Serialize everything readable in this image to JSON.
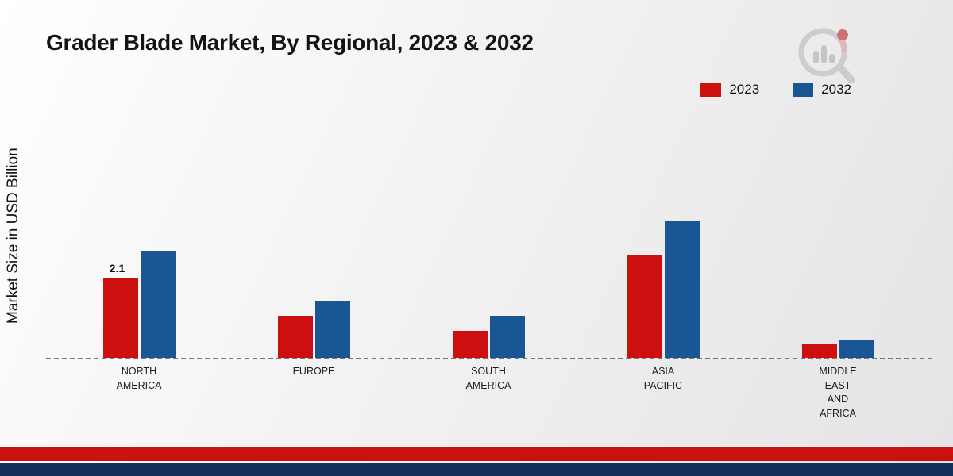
{
  "title": "Grader Blade Market, By Regional, 2023 & 2032",
  "y_axis_label": "Market Size in USD Billion",
  "legend": {
    "items": [
      {
        "label": "2023",
        "color": "#cc0f0f"
      },
      {
        "label": "2032",
        "color": "#1a5693"
      }
    ]
  },
  "annotation": {
    "text": "2.1",
    "category_index": 0,
    "series_index": 0
  },
  "branding": {
    "logo": "market-research-future-logo"
  },
  "colors": {
    "accent_red": "#cc0f0f",
    "accent_blue": "#1a5693",
    "footer_navy": "#12305e"
  },
  "chart_data": {
    "type": "bar",
    "title": "Grader Blade Market, By Regional, 2023 & 2032",
    "ylabel": "Market Size in USD Billion",
    "xlabel": "",
    "ylim": [
      0,
      4
    ],
    "grid": false,
    "legend_position": "top-right",
    "categories": [
      "NORTH AMERICA",
      "EUROPE",
      "SOUTH AMERICA",
      "ASIA PACIFIC",
      "MIDDLE EAST AND AFRICA"
    ],
    "category_label_lines": [
      [
        "NORTH",
        "AMERICA"
      ],
      [
        "EUROPE"
      ],
      [
        "SOUTH",
        "AMERICA"
      ],
      [
        "ASIA",
        "PACIFIC"
      ],
      [
        "MIDDLE",
        "EAST",
        "AND",
        "AFRICA"
      ]
    ],
    "series": [
      {
        "name": "2023",
        "color": "#cc0f0f",
        "values": [
          2.1,
          1.1,
          0.7,
          2.7,
          0.35
        ]
      },
      {
        "name": "2032",
        "color": "#1a5693",
        "values": [
          2.8,
          1.5,
          1.1,
          3.6,
          0.45
        ]
      }
    ]
  }
}
